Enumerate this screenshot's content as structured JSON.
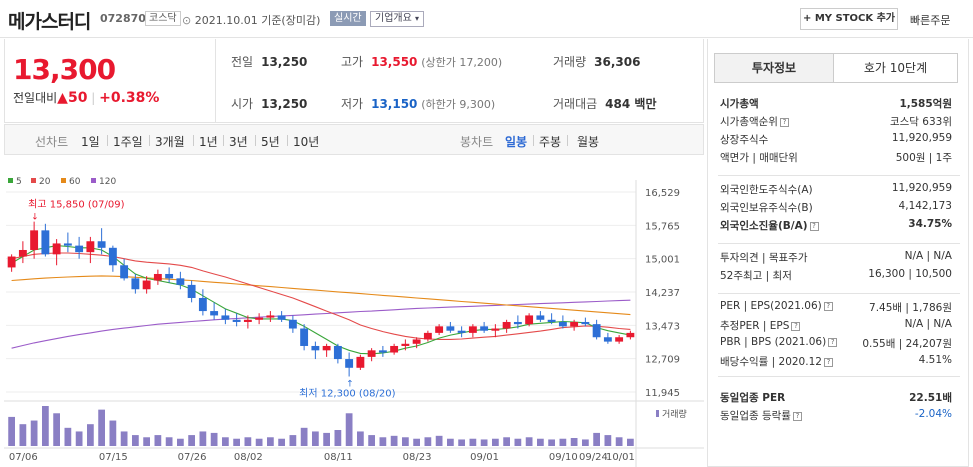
{
  "header": {
    "name": "메가스터디",
    "code": "072870",
    "market": "코스닥",
    "date": "2021.10.01 기준(장미감)",
    "realtime": "실시간",
    "company_info": "기업개요",
    "mystock": "+ MY STOCK 추가",
    "quick_order": "빠른주문"
  },
  "price": {
    "current": "13,300",
    "change_label": "전일대비",
    "change_arrow": "▲",
    "change": "50",
    "change_pct": "+0.38%"
  },
  "stats": {
    "prev_label": "전일",
    "prev": "13,250",
    "high_label": "고가",
    "high": "13,550",
    "upper_limit": "(상한가 17,200)",
    "volume_label": "거래량",
    "volume": "36,306",
    "open_label": "시가",
    "open": "13,250",
    "low_label": "저가",
    "low": "13,150",
    "lower_limit": "(하한가 9,300)",
    "amount_label": "거래대금",
    "amount": "484 백만"
  },
  "period_tabs": {
    "line_label": "선차트",
    "items": [
      "1일",
      "1주일",
      "3개월",
      "1년",
      "3년",
      "5년",
      "10년"
    ],
    "candle_label": "봉차트",
    "candle_items": [
      "일봉",
      "주봉",
      "월봉"
    ],
    "selected": "일봉"
  },
  "chart_data": {
    "type": "candlestick",
    "legend": [
      {
        "name": "5",
        "color": "#3aa63a"
      },
      {
        "name": "20",
        "color": "#e44a4a"
      },
      {
        "name": "60",
        "color": "#e58a1a"
      },
      {
        "name": "120",
        "color": "#9b5cc9"
      }
    ],
    "y_ticks": [
      "16,529",
      "15,765",
      "15,001",
      "14,237",
      "13,473",
      "12,709",
      "11,945"
    ],
    "ylim": [
      11945,
      16529
    ],
    "x_ticks": [
      "07/06",
      "07/15",
      "07/26",
      "08/02",
      "08/11",
      "08/23",
      "09/01",
      "09/10",
      "09/24",
      "10/01"
    ],
    "high_annotation": "최고 15,850 (07/09)",
    "low_annotation": "최저 12,300 (08/20)",
    "volume_label": "거래량",
    "candles": [
      [
        14800,
        15100,
        14700,
        15050
      ],
      [
        15050,
        15400,
        14900,
        15200
      ],
      [
        15200,
        15850,
        15000,
        15650
      ],
      [
        15650,
        15800,
        15050,
        15100
      ],
      [
        15100,
        15450,
        14850,
        15350
      ],
      [
        15350,
        15600,
        15150,
        15300
      ],
      [
        15300,
        15500,
        15000,
        15150
      ],
      [
        15150,
        15500,
        14900,
        15400
      ],
      [
        15400,
        15700,
        15100,
        15250
      ],
      [
        15250,
        15300,
        14700,
        14850
      ],
      [
        14850,
        15000,
        14500,
        14550
      ],
      [
        14550,
        14650,
        14200,
        14300
      ],
      [
        14300,
        14600,
        14200,
        14500
      ],
      [
        14500,
        14750,
        14400,
        14650
      ],
      [
        14650,
        14800,
        14450,
        14550
      ],
      [
        14550,
        14700,
        14300,
        14400
      ],
      [
        14400,
        14500,
        14000,
        14100
      ],
      [
        14100,
        14300,
        13700,
        13800
      ],
      [
        13800,
        14000,
        13600,
        13700
      ],
      [
        13700,
        13850,
        13500,
        13600
      ],
      [
        13600,
        13750,
        13450,
        13550
      ],
      [
        13550,
        13700,
        13400,
        13600
      ],
      [
        13600,
        13750,
        13500,
        13650
      ],
      [
        13650,
        13800,
        13550,
        13700
      ],
      [
        13700,
        13800,
        13550,
        13600
      ],
      [
        13600,
        13700,
        13300,
        13400
      ],
      [
        13400,
        13500,
        12900,
        13000
      ],
      [
        13000,
        13100,
        12700,
        12900
      ],
      [
        12900,
        13050,
        12750,
        13000
      ],
      [
        13000,
        13050,
        12600,
        12700
      ],
      [
        12700,
        12850,
        12300,
        12500
      ],
      [
        12500,
        12800,
        12450,
        12750
      ],
      [
        12750,
        12950,
        12650,
        12900
      ],
      [
        12900,
        13000,
        12750,
        12850
      ],
      [
        12850,
        13050,
        12800,
        13000
      ],
      [
        13000,
        13150,
        12900,
        13050
      ],
      [
        13050,
        13200,
        12950,
        13150
      ],
      [
        13150,
        13350,
        13100,
        13300
      ],
      [
        13300,
        13500,
        13250,
        13450
      ],
      [
        13450,
        13550,
        13300,
        13350
      ],
      [
        13350,
        13450,
        13200,
        13300
      ],
      [
        13300,
        13500,
        13200,
        13450
      ],
      [
        13450,
        13550,
        13300,
        13350
      ],
      [
        13350,
        13500,
        13200,
        13400
      ],
      [
        13400,
        13600,
        13300,
        13550
      ],
      [
        13550,
        13700,
        13400,
        13500
      ],
      [
        13500,
        13750,
        13450,
        13700
      ],
      [
        13700,
        13800,
        13550,
        13600
      ],
      [
        13600,
        13750,
        13500,
        13550
      ],
      [
        13550,
        13700,
        13400,
        13450
      ],
      [
        13450,
        13600,
        13350,
        13550
      ],
      [
        13550,
        13650,
        13450,
        13500
      ],
      [
        13500,
        13600,
        13150,
        13200
      ],
      [
        13200,
        13300,
        13050,
        13100
      ],
      [
        13100,
        13250,
        13050,
        13200
      ],
      [
        13200,
        13350,
        13150,
        13300
      ]
    ],
    "ma5": [
      14900,
      15050,
      15200,
      15250,
      15300,
      15280,
      15250,
      15250,
      15200,
      15050,
      14850,
      14650,
      14550,
      14500,
      14450,
      14400,
      14300,
      14150,
      14000,
      13850,
      13750,
      13650,
      13620,
      13620,
      13620,
      13580,
      13450,
      13300,
      13150,
      13000,
      12900,
      12830,
      12820,
      12840,
      12880,
      12950,
      13000,
      13080,
      13180,
      13250,
      13300,
      13350,
      13380,
      13380,
      13400,
      13440,
      13500,
      13520,
      13540,
      13560,
      13550,
      13530,
      13420,
      13350,
      13300,
      13250
    ],
    "ma20": [
      15000,
      15050,
      15100,
      15120,
      15130,
      15130,
      15120,
      15100,
      15080,
      15050,
      15000,
      14950,
      14920,
      14900,
      14880,
      14850,
      14800,
      14720,
      14650,
      14580,
      14500,
      14420,
      14340,
      14260,
      14180,
      14100,
      14000,
      13900,
      13800,
      13700,
      13600,
      13480,
      13400,
      13330,
      13270,
      13220,
      13180,
      13160,
      13150,
      13150,
      13160,
      13180,
      13200,
      13220,
      13250,
      13280,
      13310,
      13340,
      13380,
      13420,
      13440,
      13460,
      13450,
      13430,
      13400,
      13380
    ],
    "ma60": [
      14500,
      14520,
      14540,
      14555,
      14570,
      14580,
      14590,
      14600,
      14605,
      14600,
      14590,
      14575,
      14560,
      14545,
      14530,
      14515,
      14500,
      14480,
      14460,
      14440,
      14420,
      14400,
      14380,
      14360,
      14340,
      14320,
      14300,
      14280,
      14260,
      14240,
      14220,
      14200,
      14180,
      14160,
      14140,
      14120,
      14100,
      14080,
      14060,
      14040,
      14020,
      14000,
      13980,
      13960,
      13940,
      13920,
      13900,
      13880,
      13860,
      13840,
      13820,
      13800,
      13780,
      13760,
      13740,
      13720
    ],
    "ma120": [
      12950,
      13010,
      13070,
      13120,
      13170,
      13220,
      13260,
      13300,
      13340,
      13380,
      13410,
      13440,
      13470,
      13500,
      13520,
      13540,
      13560,
      13580,
      13600,
      13615,
      13630,
      13645,
      13660,
      13675,
      13690,
      13700,
      13715,
      13730,
      13745,
      13760,
      13775,
      13790,
      13800,
      13815,
      13830,
      13845,
      13860,
      13870,
      13880,
      13890,
      13900,
      13910,
      13920,
      13930,
      13940,
      13950,
      13960,
      13970,
      13980,
      13990,
      14000,
      14010,
      14020,
      14030,
      14040,
      14050
    ],
    "volume": [
      40,
      30,
      35,
      55,
      45,
      25,
      20,
      30,
      50,
      35,
      20,
      15,
      12,
      15,
      12,
      10,
      15,
      20,
      18,
      12,
      10,
      12,
      10,
      12,
      10,
      15,
      25,
      20,
      18,
      22,
      45,
      20,
      15,
      12,
      14,
      12,
      10,
      12,
      14,
      10,
      9,
      10,
      9,
      10,
      12,
      10,
      12,
      10,
      9,
      10,
      11,
      9,
      18,
      15,
      12,
      10
    ]
  },
  "sidebar": {
    "tab_invest": "투자정보",
    "tab_quote": "호가 10단계",
    "rows": [
      {
        "label": "시가총액",
        "value": "1,585억원",
        "bold": true
      },
      {
        "label": "시가총액순위",
        "value": "코스닥 633위"
      },
      {
        "label": "상장주식수",
        "value": "11,920,959"
      },
      {
        "label": "액면가 | 매매단위",
        "value": "500원 | 1주"
      },
      {
        "label": "외국인한도주식수(A)",
        "value": "11,920,959"
      },
      {
        "label": "외국인보유주식수(B)",
        "value": "4,142,173"
      },
      {
        "label": "외국인소진율(B/A)",
        "value": "34.75%",
        "bold": true
      },
      {
        "label": "투자의견 | 목표주가",
        "value": "N/A | N/A"
      },
      {
        "label": "52주최고 | 최저",
        "value": "16,300 | 10,500"
      },
      {
        "label": "PER | EPS(2021.06)",
        "value": "7.45배 | 1,786원"
      },
      {
        "label": "추정PER | EPS",
        "value": "N/A | N/A"
      },
      {
        "label": "PBR | BPS (2021.06)",
        "value": "0.55배 | 24,207원"
      },
      {
        "label": "배당수익률 | 2020.12",
        "value": "4.51%"
      },
      {
        "label": "동일업종 PER",
        "value": "22.51배",
        "bold": true
      },
      {
        "label": "동일업종 등락률",
        "value": "-2.04%",
        "blue": true
      }
    ]
  }
}
